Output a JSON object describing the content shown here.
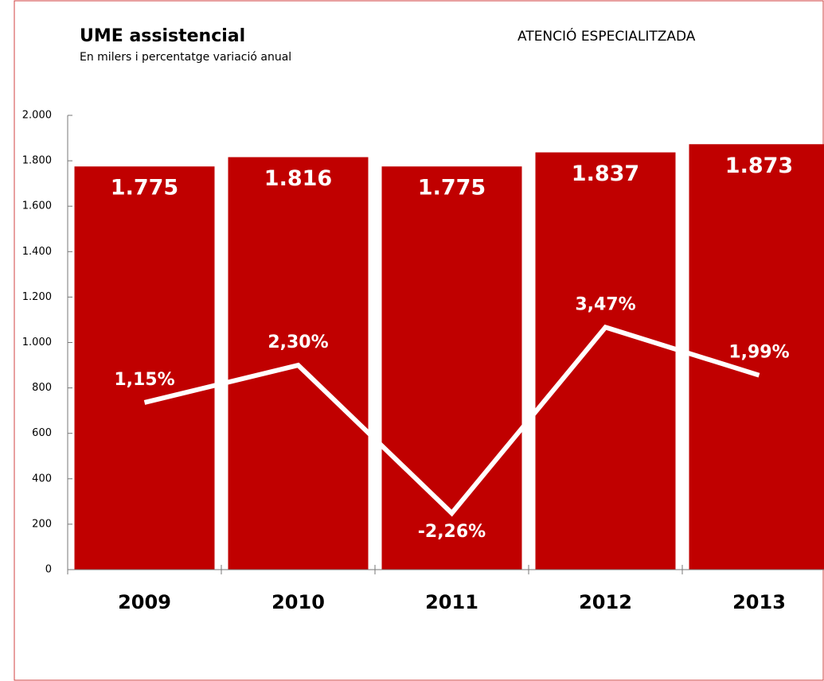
{
  "chart_data": {
    "type": "bar",
    "title": "UME assistencial",
    "subtitle": "En milers  i percentatge variació anual",
    "annotation": "ATENCIÓ ESPECIALITZADA",
    "categories": [
      "2009",
      "2010",
      "2011",
      "2012",
      "2013"
    ],
    "series": [
      {
        "type": "bar",
        "color": "#c00000",
        "values": [
          1775,
          1816,
          1775,
          1837,
          1873
        ],
        "value_labels": [
          "1.775",
          "1.816",
          "1.775",
          "1.837",
          "1.873"
        ]
      },
      {
        "type": "line",
        "axis": "y2",
        "color": "#ffffff",
        "values": [
          1.15,
          2.3,
          -2.26,
          3.47,
          1.99
        ],
        "value_labels": [
          "1,15%",
          "2,30%",
          "-2,26%",
          "3,47%",
          "1,99%"
        ]
      }
    ],
    "ylim": [
      0,
      2000
    ],
    "yticks": [
      0,
      200,
      400,
      600,
      800,
      {
        "value": 1000,
        "label": "1.000"
      },
      {
        "value": 1200,
        "label": "1.200"
      },
      {
        "value": 1400,
        "label": "1.400"
      },
      {
        "value": 1600,
        "label": "1.600"
      },
      {
        "value": 1800,
        "label": "1.800"
      },
      {
        "value": 2000,
        "label": "2.000"
      }
    ],
    "y2lim": [
      -4,
      10
    ]
  }
}
